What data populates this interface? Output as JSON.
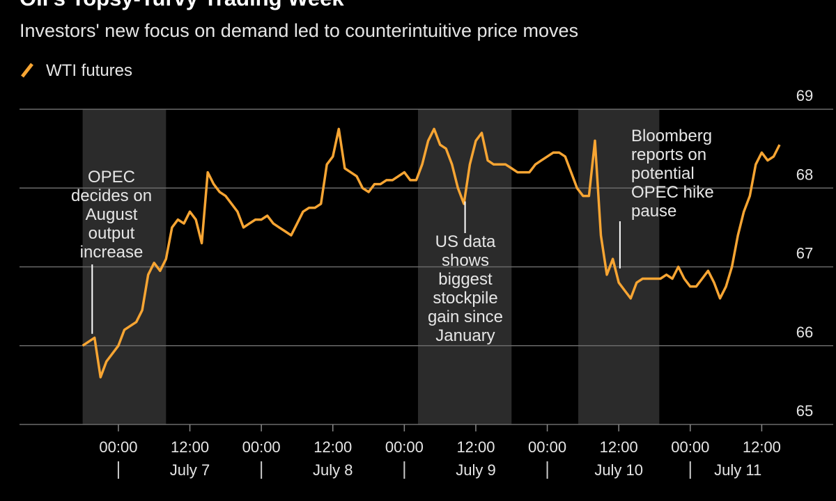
{
  "chart_data": {
    "type": "line",
    "title": "Oil's Topsy-Turvy Trading Week",
    "subtitle": "Investors' new focus on demand led to counterintuitive price moves",
    "x": [
      -6,
      -5,
      -4,
      -3,
      -2,
      -1,
      0,
      1,
      2,
      3,
      4,
      5,
      6,
      7,
      8,
      9,
      10,
      11,
      12,
      13,
      14,
      15,
      16,
      17,
      18,
      19,
      20,
      21,
      22,
      23,
      24,
      25,
      26,
      27,
      28,
      29,
      30,
      31,
      32,
      33,
      34,
      35,
      36,
      37,
      38,
      39,
      40,
      41,
      42,
      43,
      44,
      45,
      46,
      47,
      48,
      49,
      50,
      51,
      52,
      53,
      54,
      55,
      56,
      57,
      58,
      59,
      60,
      61,
      62,
      63,
      64,
      65,
      66,
      67,
      68,
      69,
      70,
      71,
      72,
      73,
      74,
      75,
      76,
      77,
      78,
      79,
      80,
      81,
      82,
      83,
      84,
      85,
      86,
      87,
      88,
      89,
      90,
      91,
      92,
      93,
      94,
      95,
      96,
      97,
      98,
      99,
      100,
      101,
      102,
      103,
      104,
      105,
      106,
      107,
      108,
      109,
      110,
      111
    ],
    "series": [
      {
        "name": "WTI futures",
        "color": "#f7a533",
        "values": [
          66.0,
          66.05,
          66.1,
          65.6,
          65.8,
          65.9,
          66.0,
          66.2,
          66.25,
          66.3,
          66.45,
          66.9,
          67.05,
          66.95,
          67.1,
          67.5,
          67.6,
          67.55,
          67.7,
          67.6,
          67.3,
          68.2,
          68.05,
          67.95,
          67.9,
          67.8,
          67.7,
          67.5,
          67.55,
          67.6,
          67.6,
          67.65,
          67.55,
          67.5,
          67.45,
          67.4,
          67.55,
          67.7,
          67.75,
          67.75,
          67.8,
          68.3,
          68.4,
          68.75,
          68.25,
          68.2,
          68.15,
          68.0,
          67.95,
          68.05,
          68.05,
          68.1,
          68.1,
          68.15,
          68.2,
          68.1,
          68.1,
          68.3,
          68.6,
          68.75,
          68.55,
          68.5,
          68.3,
          68.0,
          67.8,
          68.3,
          68.6,
          68.7,
          68.35,
          68.3,
          68.3,
          68.3,
          68.25,
          68.2,
          68.2,
          68.2,
          68.3,
          68.35,
          68.4,
          68.45,
          68.45,
          68.4,
          68.2,
          68.0,
          67.9,
          67.9,
          68.6,
          67.4,
          66.9,
          67.1,
          66.8,
          66.7,
          66.6,
          66.8,
          66.85,
          66.85,
          66.85,
          66.85,
          66.9,
          66.85,
          67.0,
          66.85,
          66.75,
          66.75,
          66.85,
          66.95,
          66.8,
          66.6,
          66.75,
          67.0,
          67.4,
          67.7,
          67.9,
          68.3,
          68.45,
          68.35,
          68.4,
          68.55
        ]
      }
    ],
    "xlim": [
      -16.6,
      120
    ],
    "xticks": [
      {
        "value": 0,
        "label": "00:00"
      },
      {
        "value": 12,
        "label": "12:00"
      },
      {
        "value": 24,
        "label": "00:00"
      },
      {
        "value": 36,
        "label": "12:00"
      },
      {
        "value": 48,
        "label": "00:00"
      },
      {
        "value": 60,
        "label": "12:00"
      },
      {
        "value": 72,
        "label": "00:00"
      },
      {
        "value": 84,
        "label": "12:00"
      },
      {
        "value": 96,
        "label": "00:00"
      },
      {
        "value": 108,
        "label": "12:00"
      }
    ],
    "date_labels": [
      {
        "value": 12,
        "label": "July 7"
      },
      {
        "value": 36,
        "label": "July 8"
      },
      {
        "value": 60,
        "label": "July 9"
      },
      {
        "value": 84,
        "label": "July 10"
      },
      {
        "value": 104,
        "label": "July 11"
      }
    ],
    "ylim": [
      65,
      69
    ],
    "yticks": [
      65,
      66,
      67,
      68,
      69
    ],
    "grid": true,
    "shaded_ranges": [
      [
        -6,
        8
      ],
      [
        50.3,
        66
      ],
      [
        77.2,
        90.8
      ]
    ],
    "annotations": [
      {
        "lines": [
          "OPEC",
          "decides on",
          "August",
          "output",
          "increase"
        ],
        "x": -4.4,
        "y": 66.15
      },
      {
        "lines": [
          "US data",
          "shows",
          "biggest",
          "stockpile",
          "gain since",
          "January"
        ],
        "x": 58.2,
        "y": 67.83
      },
      {
        "lines": [
          "Bloomberg",
          "reports on",
          "potential",
          "OPEC hike",
          "pause"
        ],
        "x": 84.2,
        "y": 66.98
      }
    ]
  }
}
